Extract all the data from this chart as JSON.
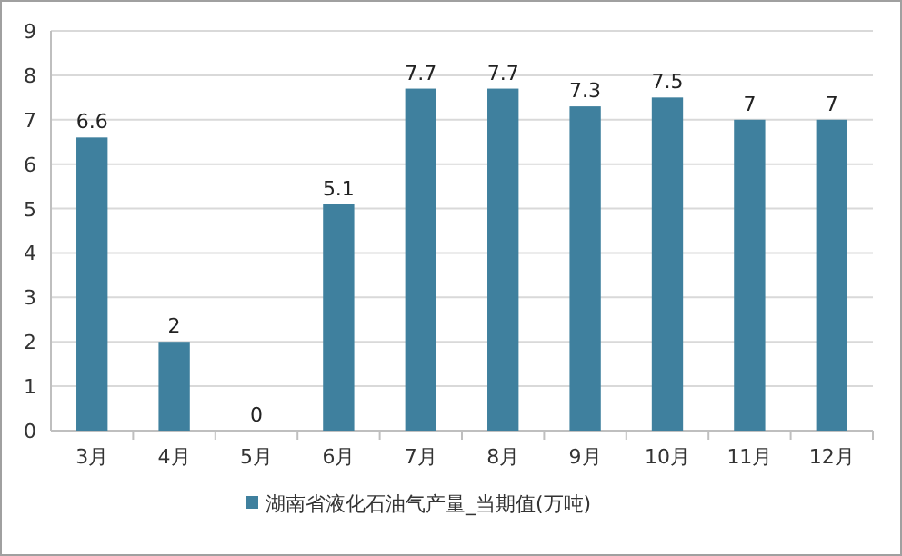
{
  "chart_data": {
    "type": "bar",
    "categories": [
      "3月",
      "4月",
      "5月",
      "6月",
      "7月",
      "8月",
      "9月",
      "10月",
      "11月",
      "12月"
    ],
    "series": [
      {
        "name": "湖南省液化石油气产量_当期值(万吨)",
        "color": "#3f809e",
        "values": [
          6.6,
          2,
          0,
          5.1,
          7.7,
          7.7,
          7.3,
          7.5,
          7,
          7
        ]
      }
    ],
    "ylim": [
      0,
      9
    ],
    "yticks": [
      0,
      1,
      2,
      3,
      4,
      5,
      6,
      7,
      8,
      9
    ],
    "grid": "y",
    "data_labels": true,
    "legend": "bottom"
  }
}
